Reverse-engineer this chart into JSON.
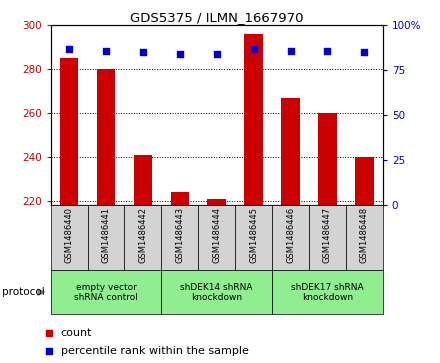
{
  "title": "GDS5375 / ILMN_1667970",
  "samples": [
    "GSM1486440",
    "GSM1486441",
    "GSM1486442",
    "GSM1486443",
    "GSM1486444",
    "GSM1486445",
    "GSM1486446",
    "GSM1486447",
    "GSM1486448"
  ],
  "counts": [
    285,
    280,
    241,
    224,
    221,
    296,
    267,
    260,
    240
  ],
  "percentiles": [
    87,
    86,
    85,
    84,
    84,
    87,
    86,
    86,
    85
  ],
  "ylim_left": [
    218,
    300
  ],
  "ylim_right": [
    0,
    100
  ],
  "yticks_left": [
    220,
    240,
    260,
    280,
    300
  ],
  "yticks_right": [
    0,
    25,
    50,
    75,
    100
  ],
  "bar_color": "#CC0000",
  "dot_color": "#0000CC",
  "bar_width": 0.5,
  "groups": [
    {
      "label": "empty vector\nshRNA control",
      "start": 0,
      "end": 3,
      "color": "#90EE90"
    },
    {
      "label": "shDEK14 shRNA\nknockdown",
      "start": 3,
      "end": 6,
      "color": "#90EE90"
    },
    {
      "label": "shDEK17 shRNA\nknockdown",
      "start": 6,
      "end": 9,
      "color": "#90EE90"
    }
  ],
  "protocol_label": "protocol",
  "legend_count_label": "count",
  "legend_pct_label": "percentile rank within the sample",
  "plot_bg": "#FFFFFF",
  "tick_color_left": "#CC0000",
  "tick_color_right": "#0000CC",
  "label_bg": "#D3D3D3",
  "group_bg": "#90EE90"
}
